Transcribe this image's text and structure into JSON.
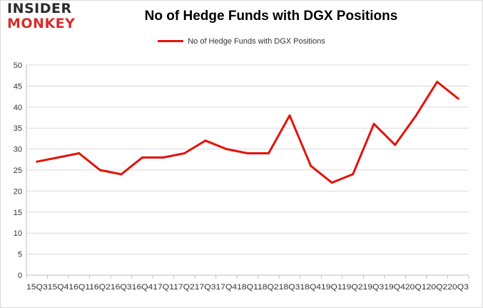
{
  "logo": {
    "line1": "INSIDER",
    "line2": "MONKEY"
  },
  "colors": {
    "series": "#e3120b",
    "grid": "#d9d9d9",
    "axis": "#bfbfbf",
    "logo_dark": "#2b2b2b",
    "logo_red": "#d62c2c"
  },
  "chart_data": {
    "type": "line",
    "title": "No of Hedge Funds with DGX Positions",
    "xlabel": "",
    "ylabel": "",
    "ylim": [
      0,
      50
    ],
    "yticks": [
      0,
      5,
      10,
      15,
      20,
      25,
      30,
      35,
      40,
      45,
      50
    ],
    "grid": "horizontal",
    "legend_position": "top-center",
    "x_tick_text": "15Q315Q416Q116Q216Q316Q417Q117Q217Q317Q418Q118Q218Q318Q419Q119Q219Q319Q420Q120Q220Q3",
    "categories": [
      "15Q3",
      "15Q4",
      "16Q1",
      "16Q2",
      "16Q3",
      "16Q4",
      "17Q1",
      "17Q2",
      "17Q3",
      "17Q4",
      "18Q1",
      "18Q2",
      "18Q3",
      "18Q4",
      "19Q1",
      "19Q2",
      "19Q3",
      "19Q4",
      "20Q1",
      "20Q2",
      "20Q3"
    ],
    "series": [
      {
        "name": "No of Hedge Funds with DGX Positions",
        "values": [
          27,
          28,
          29,
          25,
          24,
          28,
          28,
          29,
          32,
          30,
          29,
          29,
          38,
          26,
          22,
          24,
          36,
          31,
          38,
          46,
          42
        ]
      }
    ]
  }
}
